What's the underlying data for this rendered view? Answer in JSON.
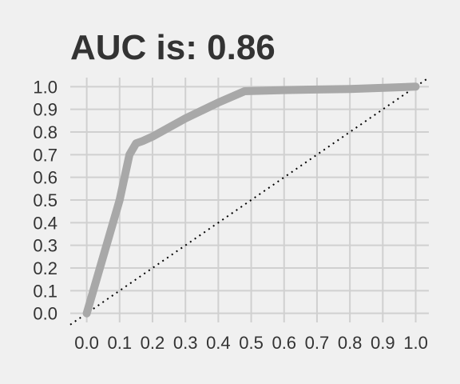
{
  "chart_data": {
    "type": "line",
    "title": "AUC is: 0.86",
    "xlabel": "",
    "ylabel": "",
    "xlim": [
      -0.05,
      1.04
    ],
    "ylim": [
      -0.04,
      1.04
    ],
    "x_ticks": [
      "0.0",
      "0.1",
      "0.2",
      "0.3",
      "0.4",
      "0.5",
      "0.6",
      "0.7",
      "0.8",
      "0.9",
      "1.0"
    ],
    "y_ticks": [
      "0.0",
      "0.1",
      "0.2",
      "0.3",
      "0.4",
      "0.5",
      "0.6",
      "0.7",
      "0.8",
      "0.9",
      "1.0"
    ],
    "grid": true,
    "series": [
      {
        "color": "#a8a8a8",
        "x": [
          0.0,
          0.05,
          0.1,
          0.13,
          0.15,
          0.17,
          0.2,
          0.3,
          0.4,
          0.48,
          0.6,
          0.8,
          1.0
        ],
        "y": [
          0.0,
          0.25,
          0.5,
          0.7,
          0.75,
          0.76,
          0.78,
          0.86,
          0.93,
          0.98,
          0.985,
          0.99,
          1.0
        ]
      }
    ],
    "reference_line": {
      "style": "dotted",
      "color": "#000000",
      "x": [
        -0.05,
        1.04
      ],
      "y": [
        -0.05,
        1.04
      ]
    }
  }
}
